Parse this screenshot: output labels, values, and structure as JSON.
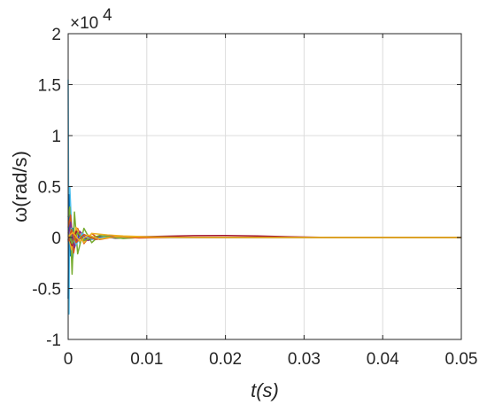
{
  "chart_data": {
    "type": "line",
    "xlabel": "t(s)",
    "ylabel": "ω(rad/s)",
    "y_exponent_label": "×10",
    "y_exponent_power": "4",
    "xlim": [
      0,
      0.05
    ],
    "ylim": [
      -10000,
      20000
    ],
    "xticks": [
      "0",
      "0.01",
      "0.02",
      "0.03",
      "0.04",
      "0.05"
    ],
    "yticks": [
      "-1",
      "-0.5",
      "0",
      "0.5",
      "1",
      "1.5",
      "2"
    ],
    "xtick_values": [
      0,
      0.01,
      0.02,
      0.03,
      0.04,
      0.05
    ],
    "ytick_values": [
      -10000,
      -5000,
      0,
      5000,
      10000,
      15000,
      20000
    ],
    "grid": true,
    "legend": "none",
    "series": [
      {
        "color": "#4DBEEE",
        "x": [
          0,
          0.0001,
          0.0002,
          0.0004,
          0.0006,
          0.001,
          0.0015,
          0.002,
          0.003,
          0.005,
          0.01,
          0.05
        ],
        "y": [
          15500,
          -7500,
          5000,
          1500,
          -2000,
          800,
          -600,
          300,
          -150,
          60,
          10,
          0
        ]
      },
      {
        "color": "#0072BD",
        "x": [
          0,
          0.0001,
          0.0003,
          0.0006,
          0.001,
          0.0015,
          0.002,
          0.003,
          0.005,
          0.01,
          0.05
        ],
        "y": [
          -6000,
          4200,
          -1800,
          900,
          -500,
          300,
          -150,
          80,
          -30,
          5,
          0
        ]
      },
      {
        "color": "#77AC30",
        "x": [
          0,
          0.0002,
          0.0005,
          0.0008,
          0.0012,
          0.002,
          0.003,
          0.004,
          0.006,
          0.01,
          0.05
        ],
        "y": [
          2000,
          3000,
          -3600,
          2500,
          -1600,
          900,
          -500,
          200,
          -80,
          10,
          0
        ]
      },
      {
        "color": "#D95319",
        "x": [
          0,
          0.0003,
          0.0007,
          0.0012,
          0.002,
          0.003,
          0.004,
          0.006,
          0.01,
          0.05
        ],
        "y": [
          1000,
          2200,
          -1500,
          900,
          -600,
          400,
          -200,
          80,
          10,
          0
        ]
      },
      {
        "color": "#EDB120",
        "x": [
          0,
          0.0004,
          0.001,
          0.002,
          0.003,
          0.005,
          0.007,
          0.01,
          0.015,
          0.05
        ],
        "y": [
          500,
          -1200,
          1000,
          -500,
          400,
          250,
          150,
          80,
          20,
          0
        ]
      },
      {
        "color": "#7E2F8E",
        "x": [
          0,
          0.0003,
          0.0008,
          0.0015,
          0.0025,
          0.004,
          0.006,
          0.01,
          0.05
        ],
        "y": [
          -300,
          1500,
          -1000,
          600,
          -300,
          150,
          -50,
          5,
          0
        ]
      },
      {
        "color": "#A2142F",
        "x": [
          0,
          0.0005,
          0.001,
          0.002,
          0.004,
          0.008,
          0.012,
          0.016,
          0.02,
          0.024,
          0.028,
          0.032,
          0.05
        ],
        "y": [
          200,
          -800,
          600,
          -300,
          150,
          50,
          120,
          180,
          200,
          150,
          80,
          20,
          0
        ]
      },
      {
        "color": "#4DBEEE",
        "x": [
          0,
          0.0004,
          0.001,
          0.0018,
          0.003,
          0.005,
          0.008,
          0.012,
          0.05
        ],
        "y": [
          -200,
          900,
          -700,
          400,
          -200,
          100,
          -30,
          5,
          0
        ]
      },
      {
        "color": "#77AC30",
        "x": [
          0,
          0.0005,
          0.0012,
          0.002,
          0.004,
          0.007,
          0.01,
          0.014,
          0.02,
          0.05
        ],
        "y": [
          300,
          -600,
          500,
          -300,
          200,
          -100,
          50,
          20,
          5,
          0
        ]
      },
      {
        "color": "#D95319",
        "x": [
          0,
          0.0004,
          0.001,
          0.002,
          0.0035,
          0.006,
          0.009,
          0.013,
          0.05
        ],
        "y": [
          -400,
          800,
          -500,
          300,
          -200,
          100,
          -40,
          10,
          0
        ]
      },
      {
        "color": "#EDB120",
        "x": [
          0,
          0.0006,
          0.0015,
          0.0025,
          0.004,
          0.006,
          0.009,
          0.013,
          0.018,
          0.05
        ],
        "y": [
          100,
          500,
          -400,
          250,
          -150,
          100,
          60,
          20,
          5,
          0
        ]
      }
    ]
  }
}
